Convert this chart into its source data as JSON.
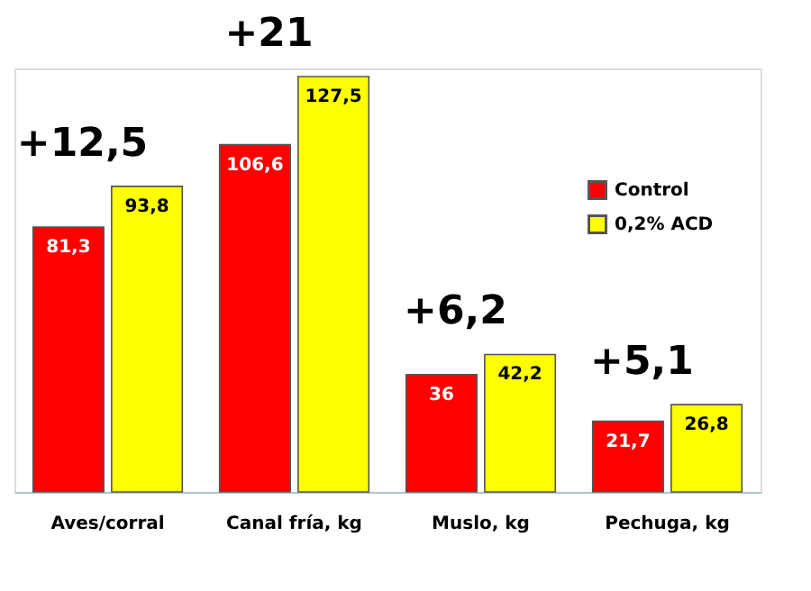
{
  "chart_data": {
    "type": "bar",
    "categories": [
      "Aves/corral",
      "Canal fría, kg",
      "Muslo, kg",
      "Pechuga, kg"
    ],
    "series": [
      {
        "name": "Control",
        "color": "#ff0000",
        "values": [
          81.3,
          106.6,
          36,
          21.7
        ],
        "value_labels": [
          "81,3",
          "106,6",
          "36",
          "21,7"
        ]
      },
      {
        "name": "0,2% ACD",
        "color": "#ffff00",
        "values": [
          93.8,
          127.5,
          42.2,
          26.8
        ],
        "value_labels": [
          "93,8",
          "127,5",
          "42,2",
          "26,8"
        ]
      }
    ],
    "data_labels": false,
    "tick_labels": "x",
    "grid": false,
    "legend": "top right",
    "annotations": [
      "+12,5",
      "+21",
      "+6,2",
      "+5,1"
    ]
  }
}
